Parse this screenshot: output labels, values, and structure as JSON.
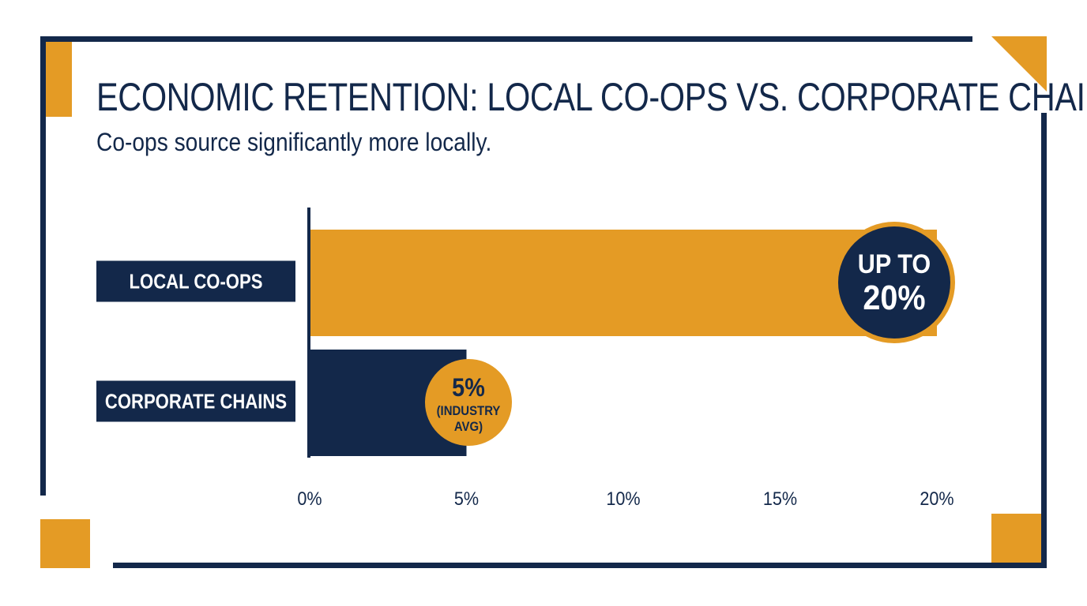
{
  "title": "ECONOMIC RETENTION: LOCAL CO-OPS VS. CORPORATE CHAINS",
  "subtitle": "Co-ops source significantly more locally.",
  "colors": {
    "navy": "#13284a",
    "gold": "#e49b25",
    "background": "#ffffff"
  },
  "chart_data": {
    "type": "bar",
    "orientation": "horizontal",
    "categories": [
      "LOCAL CO-OPS",
      "CORPORATE CHAINS"
    ],
    "values": [
      20,
      5
    ],
    "value_unit": "%",
    "xlim": [
      0,
      20
    ],
    "x_ticks": [
      0,
      5,
      10,
      15,
      20
    ],
    "x_tick_labels": [
      "0%",
      "5%",
      "10%",
      "15%",
      "20%"
    ],
    "bar_colors": [
      "#e49b25",
      "#13284a"
    ],
    "grid": false,
    "annotations": [
      {
        "category": "LOCAL CO-OPS",
        "lines": [
          "UP TO",
          "20%"
        ]
      },
      {
        "category": "CORPORATE CHAINS",
        "lines": [
          "5%",
          "(INDUSTRY",
          "AVG)"
        ]
      }
    ]
  }
}
